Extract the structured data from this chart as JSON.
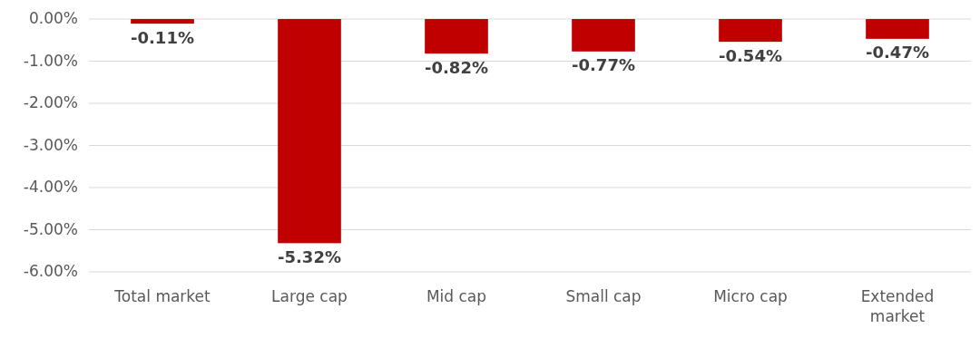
{
  "chart_data": {
    "type": "bar",
    "categories": [
      "Total market",
      "Large cap",
      "Mid cap",
      "Small cap",
      "Micro cap",
      "Extended market"
    ],
    "values": [
      -0.11,
      -5.32,
      -0.82,
      -0.77,
      -0.54,
      -0.47
    ],
    "value_labels": [
      "-0.11%",
      "-5.32%",
      "-0.82%",
      "-0.77%",
      "-0.54%",
      "-0.47%"
    ],
    "color": "#c00000",
    "ylim": [
      -6,
      0
    ],
    "yticks": [
      {
        "value": 0,
        "label": "0.00%"
      },
      {
        "value": -1,
        "label": "-1.00%"
      },
      {
        "value": -2,
        "label": "-2.00%"
      },
      {
        "value": -3,
        "label": "-3.00%"
      },
      {
        "value": -4,
        "label": "-4.00%"
      },
      {
        "value": -5,
        "label": "-5.00%"
      },
      {
        "value": -6,
        "label": "-6.00%"
      }
    ],
    "grid": "y"
  }
}
